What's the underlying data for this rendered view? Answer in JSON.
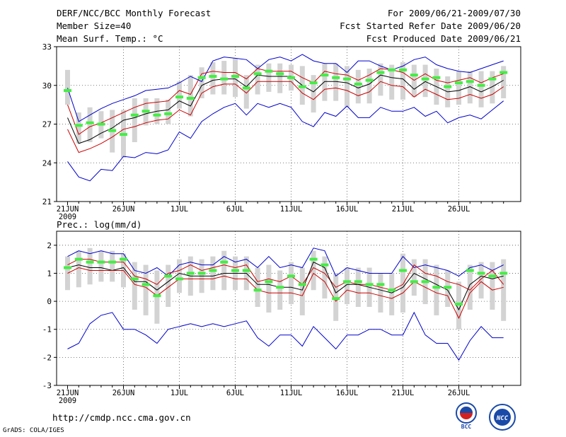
{
  "header": {
    "title": "DERF/NCC/BCC Monthly Forecast",
    "member": "Member Size=40",
    "variable": "Mean Surf. Temp.: °C",
    "period": "For 2009/06/21-2009/07/30",
    "refer": "Fcst Started Refer Date 2009/06/20",
    "produced": "Fcst Produced Date 2009/06/21"
  },
  "footer": {
    "url": "http://cmdp.ncc.cma.gov.cn",
    "credit": "GrADS: COLA/IGES"
  },
  "logos": {
    "bcc": "BCC",
    "ncc": "NCC"
  },
  "colors": {
    "ens_max_min": "#0000cc",
    "spread": "#cc0000",
    "ens_mean": "#000000",
    "obs": "#44ee44",
    "box": "#d3d3d3"
  },
  "x_ticks": [
    "21JUN",
    "26JUN",
    "1JUL",
    "6JUL",
    "11JUL",
    "16JUL",
    "21JUL",
    "26JUL"
  ],
  "x_year": "2009",
  "chart_data": [
    {
      "type": "line",
      "title": "Mean Surf. Temp.: °C",
      "xlabel": "",
      "ylabel": "",
      "ylim": [
        21,
        33
      ],
      "yticks": [
        21,
        24,
        27,
        30,
        33
      ],
      "x_days": 40,
      "series": [
        {
          "name": "ensemble max",
          "values": [
            29.8,
            27.2,
            27.7,
            28.2,
            28.6,
            28.9,
            29.2,
            29.6,
            29.7,
            29.8,
            30.2,
            30.7,
            30.3,
            31.9,
            32.2,
            32.1,
            32.0,
            31.3,
            32.0,
            32.2,
            31.9,
            32.4,
            31.9,
            31.7,
            31.7,
            31.0,
            31.9,
            31.9,
            31.5,
            31.2,
            31.5,
            32.0,
            32.2,
            31.6,
            31.3,
            31.1,
            31.0,
            31.3,
            31.6,
            31.9
          ]
        },
        {
          "name": "upper spread",
          "values": [
            28.5,
            26.2,
            26.8,
            27.1,
            27.5,
            27.9,
            28.3,
            28.6,
            28.7,
            28.8,
            29.6,
            29.3,
            30.9,
            31.1,
            31.0,
            31.0,
            30.5,
            31.3,
            31.1,
            31.1,
            31.1,
            30.6,
            30.2,
            31.1,
            30.9,
            30.8,
            30.4,
            30.8,
            31.3,
            31.2,
            31.0,
            30.4,
            30.9,
            30.4,
            30.2,
            30.4,
            30.6,
            30.2,
            30.6,
            30.9
          ]
        },
        {
          "name": "ensemble mean",
          "values": [
            27.5,
            25.5,
            25.8,
            26.3,
            26.7,
            27.3,
            27.5,
            27.8,
            28.0,
            28.1,
            28.8,
            28.4,
            30.0,
            30.4,
            30.5,
            30.5,
            29.9,
            30.8,
            30.7,
            30.7,
            30.7,
            30.0,
            29.5,
            30.3,
            30.3,
            30.2,
            29.8,
            30.1,
            30.8,
            30.6,
            30.5,
            29.7,
            30.3,
            29.9,
            29.5,
            29.6,
            29.9,
            29.5,
            29.9,
            30.4
          ]
        },
        {
          "name": "lower spread",
          "values": [
            26.6,
            24.8,
            25.1,
            25.5,
            26.0,
            26.6,
            26.8,
            27.1,
            27.3,
            27.4,
            28.1,
            27.7,
            29.4,
            29.9,
            30.1,
            30.1,
            29.4,
            30.3,
            30.3,
            30.3,
            30.3,
            29.4,
            28.9,
            29.7,
            29.8,
            29.6,
            29.2,
            29.5,
            30.3,
            30.0,
            29.9,
            29.1,
            29.7,
            29.3,
            28.9,
            29.0,
            29.3,
            29.0,
            29.3,
            29.9
          ]
        },
        {
          "name": "ensemble min",
          "values": [
            24.1,
            22.9,
            22.6,
            23.5,
            23.4,
            24.5,
            24.4,
            24.8,
            24.7,
            25.0,
            26.4,
            25.9,
            27.2,
            27.8,
            28.3,
            28.6,
            27.7,
            28.6,
            28.3,
            28.6,
            28.3,
            27.2,
            26.8,
            27.9,
            27.6,
            28.4,
            27.5,
            27.5,
            28.3,
            28.0,
            28.0,
            28.3,
            27.6,
            28.0,
            27.1,
            27.5,
            27.7,
            27.4,
            28.1,
            28.8
          ]
        },
        {
          "name": "observed",
          "values": [
            29.6,
            26.9,
            27.1,
            27.0,
            26.5,
            26.2,
            27.7,
            28.0,
            27.7,
            27.8,
            29.1,
            29.0,
            30.6,
            30.7,
            30.5,
            30.7,
            29.8,
            30.9,
            31.1,
            30.9,
            30.6,
            29.9,
            30.2,
            30.8,
            30.6,
            30.5,
            30.1,
            30.4,
            31.0,
            31.2,
            31.2,
            30.8,
            30.5,
            30.6,
            29.9,
            30.2,
            30.3,
            30.0,
            30.5,
            31.0
          ]
        }
      ],
      "box_range": {
        "low": [
          28.5,
          25.5,
          25.6,
          25.9,
          24.8,
          24.4,
          25.6,
          26.9,
          27.0,
          27.0,
          28.2,
          27.6,
          29.0,
          29.3,
          29.3,
          29.1,
          28.2,
          29.3,
          29.5,
          29.4,
          29.6,
          28.5,
          27.9,
          28.8,
          28.8,
          28.3,
          28.6,
          28.6,
          29.2,
          28.9,
          28.9,
          29.1,
          29.1,
          28.5,
          28.3,
          28.5,
          28.6,
          28.3,
          28.6,
          29.0
        ],
        "high": [
          31.2,
          27.9,
          28.3,
          28.0,
          28.1,
          28.1,
          29.0,
          29.0,
          29.0,
          28.9,
          30.3,
          30.8,
          31.4,
          31.8,
          31.9,
          32.1,
          30.8,
          31.6,
          31.7,
          31.7,
          31.6,
          31.5,
          30.8,
          31.7,
          31.7,
          31.5,
          31.2,
          31.3,
          31.7,
          31.6,
          31.8,
          31.6,
          31.6,
          31.3,
          30.7,
          31.1,
          31.1,
          31.1,
          31.1,
          31.5
        ]
      }
    },
    {
      "type": "line",
      "title": "Prec.: log(mm/d)",
      "xlabel": "",
      "ylabel": "",
      "ylim": [
        -3,
        2.5
      ],
      "yticks": [
        -3,
        -2,
        -1,
        0,
        1,
        2
      ],
      "x_days": 40,
      "series": [
        {
          "name": "ensemble max",
          "values": [
            1.6,
            1.8,
            1.7,
            1.8,
            1.7,
            1.7,
            1.1,
            1.0,
            1.2,
            0.9,
            1.3,
            1.4,
            1.3,
            1.3,
            1.6,
            1.4,
            1.5,
            1.2,
            1.6,
            1.2,
            1.3,
            1.2,
            1.9,
            1.8,
            0.9,
            1.2,
            1.1,
            1.0,
            1.0,
            1.0,
            1.6,
            1.2,
            1.3,
            1.2,
            1.1,
            0.9,
            1.2,
            1.3,
            1.1,
            1.3
          ]
        },
        {
          "name": "upper spread",
          "values": [
            1.3,
            1.5,
            1.5,
            1.4,
            1.4,
            1.4,
            0.9,
            0.8,
            0.6,
            1.0,
            1.1,
            1.3,
            1.1,
            1.2,
            1.3,
            1.2,
            1.3,
            0.7,
            0.8,
            0.7,
            0.9,
            0.6,
            1.2,
            1.0,
            0.5,
            0.7,
            0.6,
            0.6,
            0.5,
            0.4,
            0.6,
            1.3,
            1.0,
            0.9,
            0.7,
            0.6,
            0.4,
            0.8,
            1.1,
            0.6
          ]
        },
        {
          "name": "ensemble mean",
          "values": [
            1.2,
            1.3,
            1.2,
            1.2,
            1.1,
            1.2,
            0.7,
            0.7,
            0.4,
            0.7,
            1.0,
            0.9,
            0.9,
            0.9,
            1.0,
            1.0,
            1.0,
            0.6,
            0.6,
            0.5,
            0.5,
            0.4,
            1.4,
            1.2,
            0.3,
            0.6,
            0.6,
            0.5,
            0.4,
            0.3,
            0.5,
            1.0,
            0.8,
            0.6,
            0.4,
            -0.3,
            0.6,
            0.9,
            0.8,
            0.9
          ]
        },
        {
          "name": "lower spread",
          "values": [
            1.0,
            1.2,
            1.1,
            1.1,
            1.1,
            1.1,
            0.6,
            0.5,
            0.2,
            0.5,
            0.8,
            0.8,
            0.8,
            0.8,
            0.9,
            0.8,
            0.8,
            0.4,
            0.3,
            0.3,
            0.3,
            0.2,
            1.0,
            0.7,
            0.0,
            0.4,
            0.3,
            0.3,
            0.2,
            0.1,
            0.3,
            0.7,
            0.5,
            0.3,
            0.2,
            -0.6,
            0.3,
            0.7,
            0.4,
            0.5
          ]
        },
        {
          "name": "ensemble min",
          "values": [
            -1.7,
            -1.5,
            -0.8,
            -0.5,
            -0.4,
            -1.0,
            -1.0,
            -1.2,
            -1.5,
            -1.0,
            -0.9,
            -0.8,
            -0.9,
            -0.8,
            -0.9,
            -0.8,
            -0.7,
            -1.3,
            -1.6,
            -1.2,
            -1.2,
            -1.6,
            -0.9,
            -1.3,
            -1.7,
            -1.2,
            -1.2,
            -1.0,
            -1.0,
            -1.2,
            -1.2,
            -0.4,
            -1.2,
            -1.5,
            -1.5,
            -2.1,
            -1.4,
            -0.9,
            -1.3,
            -1.3
          ]
        },
        {
          "name": "observed",
          "values": [
            1.2,
            1.5,
            1.4,
            1.4,
            1.4,
            1.5,
            0.8,
            0.6,
            0.2,
            0.9,
            0.8,
            1.0,
            1.0,
            1.1,
            1.4,
            1.1,
            1.1,
            0.4,
            0.7,
            0.5,
            0.9,
            0.6,
            1.5,
            1.3,
            0.1,
            0.7,
            0.7,
            0.6,
            0.6,
            0.4,
            1.1,
            0.7,
            0.7,
            0.5,
            0.5,
            -0.1,
            1.1,
            1.0,
            0.9,
            1.0
          ]
        }
      ],
      "box_range": {
        "low": [
          0.4,
          0.5,
          0.6,
          0.7,
          0.7,
          0.5,
          -0.3,
          -0.5,
          -0.8,
          -0.2,
          0.3,
          0.2,
          0.3,
          0.4,
          0.4,
          0.4,
          0.4,
          -0.2,
          -0.4,
          -0.3,
          -0.1,
          -0.5,
          0.4,
          0.1,
          -0.7,
          -0.1,
          -0.2,
          -0.2,
          -0.4,
          -0.5,
          -0.4,
          0.2,
          -0.1,
          -0.5,
          -0.2,
          -1.0,
          -0.3,
          0.1,
          -0.3,
          -0.7
        ],
        "high": [
          1.6,
          1.8,
          1.9,
          1.8,
          1.8,
          1.7,
          1.4,
          1.3,
          1.1,
          1.3,
          1.5,
          1.6,
          1.5,
          1.6,
          1.8,
          1.6,
          1.6,
          1.2,
          1.3,
          1.1,
          1.4,
          1.2,
          1.8,
          1.6,
          1.0,
          1.2,
          1.2,
          1.2,
          1.0,
          1.0,
          1.7,
          1.5,
          1.5,
          1.3,
          1.1,
          0.7,
          1.3,
          1.4,
          1.4,
          1.5
        ]
      }
    }
  ]
}
